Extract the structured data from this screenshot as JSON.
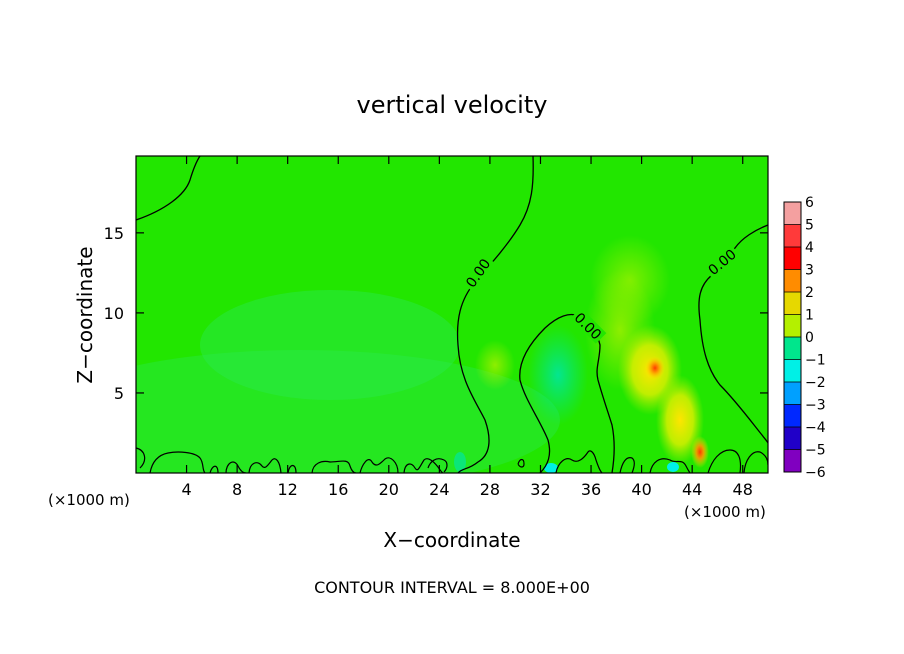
{
  "chart_data": {
    "type": "heatmap",
    "title": "vertical velocity",
    "xlabel": "X−coordinate",
    "ylabel": "Z−coordinate",
    "x_unit_left": "(×1000 m)",
    "x_unit_right": "(×1000 m)",
    "footer": "CONTOUR INTERVAL = 8.000E+00",
    "xlim": [
      0,
      50
    ],
    "ylim": [
      0,
      19.8
    ],
    "x_ticks": [
      4,
      8,
      12,
      16,
      20,
      24,
      28,
      32,
      36,
      40,
      44,
      48
    ],
    "x_tick_labels": [
      "4",
      "8",
      "12",
      "16",
      "20",
      "24",
      "28",
      "32",
      "36",
      "40",
      "44",
      "48"
    ],
    "y_ticks": [
      5,
      10,
      15
    ],
    "y_tick_labels": [
      "5",
      "10",
      "15"
    ],
    "contour_labels": [
      "0.00",
      "0.00",
      "0.00"
    ],
    "colorbar": {
      "levels": [
        6,
        5,
        4,
        3,
        2,
        1,
        0,
        -1,
        -2,
        -3,
        -4,
        -5,
        -6
      ],
      "labels": [
        "6",
        "5",
        "4",
        "3",
        "2",
        "1",
        "0",
        "−1",
        "−2",
        "−3",
        "−4",
        "−5",
        "−6"
      ],
      "colors": [
        "#f4a0a0",
        "#ff3a3a",
        "#ff0000",
        "#ff8c00",
        "#e6d800",
        "#b4f000",
        "#22e600",
        "#00e68c",
        "#00f0e6",
        "#00a0ff",
        "#0028ff",
        "#2000c8",
        "#8000c0"
      ]
    },
    "background_value": 0,
    "features": [
      {
        "name": "updraft",
        "x": 41,
        "z": 6.5,
        "value": 3
      },
      {
        "name": "updraft",
        "x": 44.5,
        "z": 1.5,
        "value": 4
      },
      {
        "name": "downdraft",
        "x": 33.5,
        "z": 6,
        "value": -1.5
      }
    ]
  }
}
